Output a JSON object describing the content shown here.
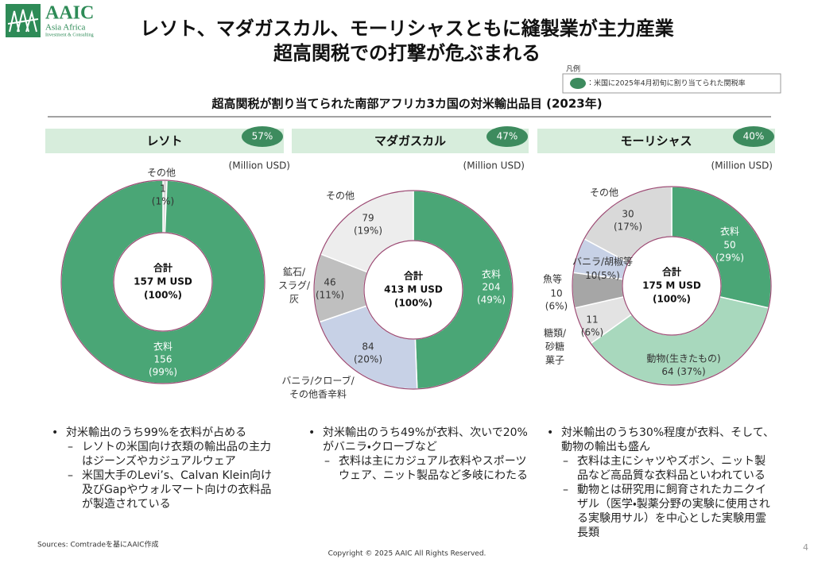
{
  "header": {
    "logo": "AAIC",
    "logo_sub": "Asia Africa",
    "logo_sub2": "Investment & Consulting",
    "title_line1": "レソト、マダガスカル、モーリシャスともに縫製業が主力産業",
    "title_line2": "超高関税での打撃が危ぶまれる"
  },
  "legend": {
    "title": "凡例",
    "label": "：米国に2025年4月初旬に割り当てられた関税率"
  },
  "subtitle": "超高関税が割り当てられた南部アフリカ3カ国の対米輸出品目 (2023年)",
  "chart_data": [
    {
      "type": "donut",
      "title": "レソト",
      "tariff": "57%",
      "unit": "(Million USD)",
      "total_label": [
        "合計",
        "157 M USD",
        "(100%)"
      ],
      "categories": [
        [
          "その他"
        ],
        [
          "衣料"
        ]
      ],
      "values": [
        1,
        156
      ],
      "share_labels": [
        "(1%)",
        "(99%)"
      ],
      "colors": [
        "#d9d9d9",
        "#4aa676"
      ]
    },
    {
      "type": "donut",
      "title": "マダガスカル",
      "tariff": "47%",
      "unit": "(Million USD)",
      "total_label": [
        "合計",
        "413 M USD",
        "(100%)"
      ],
      "categories": [
        [
          "衣料"
        ],
        [
          "バニラ/クローブ/",
          "その他香辛料"
        ],
        [
          "鉱石/",
          "スラグ/",
          "灰"
        ],
        [
          "その他"
        ]
      ],
      "values": [
        204,
        84,
        46,
        79
      ],
      "share_labels": [
        "(49%)",
        "(20%)",
        "(11%)",
        "(19%)"
      ],
      "colors": [
        "#4aa676",
        "#c7d1e6",
        "#bfbfbf",
        "#ededed"
      ]
    },
    {
      "type": "donut",
      "title": "モーリシャス",
      "tariff": "40%",
      "unit": "(Million USD)",
      "total_label": [
        "合計",
        "175 M USD",
        "(100%)"
      ],
      "categories": [
        [
          "衣料"
        ],
        [
          "動物(生きたもの)"
        ],
        [
          "糖類/",
          "砂糖",
          "菓子"
        ],
        [
          "魚等"
        ],
        [
          "バニラ/胡椒等"
        ],
        [
          "その他"
        ]
      ],
      "values": [
        50,
        64,
        11,
        10,
        10,
        30
      ],
      "share_labels": [
        "(29%)",
        "(37%)",
        "(6%)",
        "(6%)",
        "(5%)",
        "(17%)"
      ],
      "colors": [
        "#4aa676",
        "#a8d8bd",
        "#e3e3e3",
        "#a6a6a6",
        "#c7d1e6",
        "#d9d9d9"
      ]
    }
  ],
  "bullets": [
    [
      {
        "text": "対米輸出のうち99%を衣料が占める",
        "sub": [
          "レソトの米国向け衣類の輸出品の主力はジーンズやカジュアルウェア",
          "米国大手のLevi’s、Calvan Klein向け及びGapやウォルマート向けの衣料品が製造されている"
        ]
      }
    ],
    [
      {
        "text": "対米輸出のうち49%が衣料、次いで20%がバニラ・クローブなど",
        "sub": [
          "衣料は主にカジュアル衣料やスポーツウェア、ニット製品など多岐にわたる"
        ]
      }
    ],
    [
      {
        "text": "対米輸出のうち30%程度が衣料、そして、動物の輸出も盛ん",
        "sub": [
          "衣料は主にシャツやズボン、ニット製品など高品質な衣料品といわれている",
          "動物とは研究用に飼育されたカニクイザル（医学・製薬分野の実験に使用される実験用サル）を中心とした実験用霊長類"
        ]
      }
    ]
  ],
  "footer": {
    "sources": "Sources: Comtradeを基にAAIC作成",
    "copyright": "Copyright © 2025 AAIC All Rights Reserved.",
    "page": "4"
  }
}
